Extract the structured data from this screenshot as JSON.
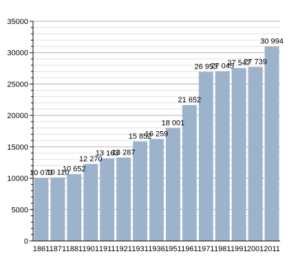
{
  "chart_data": {
    "type": "bar",
    "title": "",
    "xlabel": "",
    "ylabel": "",
    "categories": [
      "1861",
      "1871",
      "1881",
      "1901",
      "1911",
      "1921",
      "1931",
      "1936",
      "1951",
      "1961",
      "1971",
      "1981",
      "1991",
      "2001",
      "2011"
    ],
    "values": [
      10073,
      10110,
      10652,
      12270,
      13163,
      13287,
      15852,
      16259,
      18001,
      21652,
      26953,
      27045,
      27547,
      27739,
      30994
    ],
    "value_labels": [
      "10 073",
      "10 110",
      "10 652",
      "12 270",
      "13 163",
      "13 287",
      "15 852",
      "16 259",
      "18 001",
      "21 652",
      "26 953",
      "27 045",
      "27 547",
      "27 739",
      "30 994"
    ],
    "ylim": [
      0,
      35000
    ],
    "yticks": [
      0,
      5000,
      10000,
      15000,
      20000,
      25000,
      30000,
      35000
    ],
    "grid": true,
    "colors": {
      "bar": "#9db3cc",
      "major_grid": "#b0b0b0",
      "minor_grid": "#e0e0e0",
      "axis": "#000000",
      "text": "#000000"
    }
  }
}
